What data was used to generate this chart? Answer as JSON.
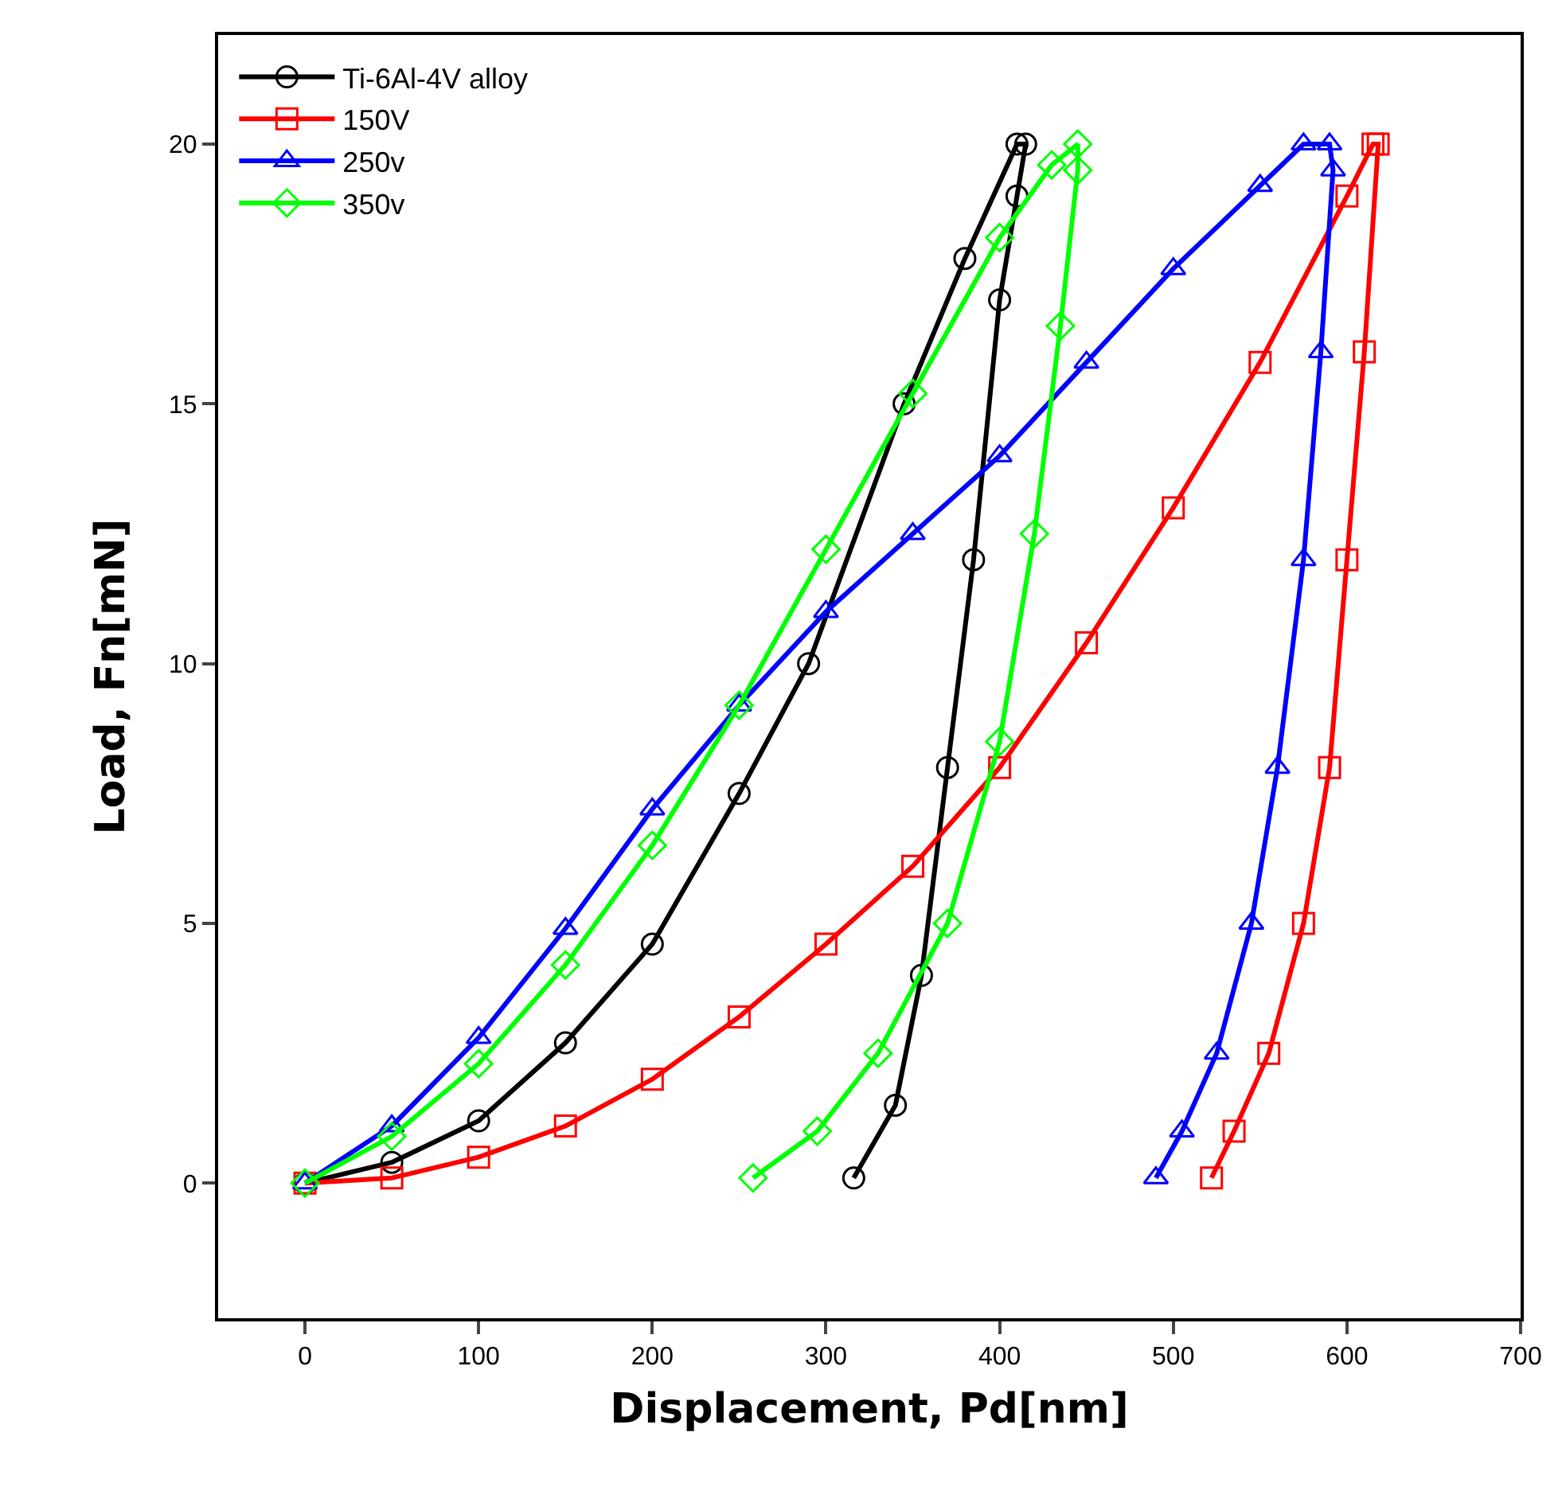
{
  "chart_data": {
    "type": "line",
    "xlabel": "Displacement, Pd[nm]",
    "ylabel": "Load, Fn[mN]",
    "xlim": [
      -50,
      700
    ],
    "xticks": [
      0,
      100,
      200,
      300,
      400,
      500,
      600,
      700
    ],
    "ylim": [
      -2.6,
      22.1
    ],
    "yticks": [
      0,
      5,
      10,
      15,
      20
    ],
    "legend": "top left",
    "series": [
      {
        "name": "Ti-6Al-4V alloy",
        "color": "#000000",
        "marker": "circle",
        "x": [
          0,
          50,
          100,
          150,
          200,
          250,
          290,
          345,
          380,
          410,
          415,
          410,
          400,
          385,
          370,
          355,
          340,
          316
        ],
        "values": [
          0,
          0.4,
          1.2,
          2.7,
          4.6,
          7.5,
          10,
          15,
          17.8,
          20,
          20,
          19,
          17,
          12,
          8,
          4,
          1.5,
          0.1
        ]
      },
      {
        "name": "150V",
        "color": "#ff0000",
        "marker": "square",
        "x": [
          0,
          50,
          100,
          150,
          200,
          250,
          300,
          350,
          400,
          450,
          500,
          550,
          600,
          615,
          618,
          610,
          600,
          590,
          575,
          555,
          535,
          522
        ],
        "values": [
          0,
          0.1,
          0.5,
          1.1,
          2,
          3.2,
          4.6,
          6.1,
          8,
          10.4,
          13,
          15.8,
          19,
          20,
          20,
          16,
          12,
          8,
          5,
          2.5,
          1,
          0.1
        ]
      },
      {
        "name": "250v",
        "color": "#0000ff",
        "marker": "triangle",
        "x": [
          0,
          50,
          100,
          150,
          200,
          250,
          300,
          350,
          400,
          450,
          500,
          550,
          575,
          590,
          592,
          585,
          575,
          560,
          545,
          525,
          505,
          490
        ],
        "values": [
          0,
          1.1,
          2.8,
          4.9,
          7.2,
          9.2,
          11,
          12.5,
          14,
          15.8,
          17.6,
          19.2,
          20,
          20,
          19.5,
          16,
          12,
          8,
          5,
          2.5,
          1,
          0.1
        ]
      },
      {
        "name": "350v",
        "color": "#00ff00",
        "marker": "diamond",
        "x": [
          0,
          50,
          100,
          150,
          200,
          250,
          300,
          350,
          400,
          430,
          445,
          445,
          435,
          420,
          400,
          370,
          330,
          295,
          258
        ],
        "values": [
          0,
          0.9,
          2.3,
          4.2,
          6.5,
          9.2,
          12.2,
          15.2,
          18.2,
          19.6,
          20,
          19.5,
          16.5,
          12.5,
          8.5,
          5,
          2.5,
          1,
          0.1
        ]
      }
    ]
  }
}
